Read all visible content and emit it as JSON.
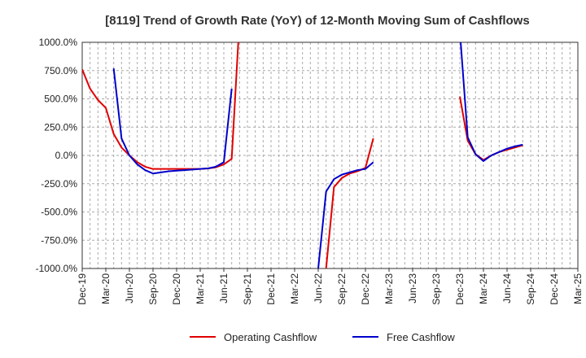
{
  "chart_data": {
    "type": "line",
    "title": "[8119]  Trend of Growth Rate (YoY) of 12-Month Moving Sum of Cashflows",
    "xlabel": "",
    "ylabel": "",
    "ylim": [
      -1000,
      1000
    ],
    "y_ticks": [
      1000,
      750,
      500,
      250,
      0,
      -250,
      -500,
      -750,
      -1000
    ],
    "y_tick_labels": [
      "1000.0%",
      "750.0%",
      "500.0%",
      "250.0%",
      "0.0%",
      "-250.0%",
      "-500.0%",
      "-750.0%",
      "-1000.0%"
    ],
    "x_tick_labels": [
      "Dec-19",
      "Mar-20",
      "Jun-20",
      "Sep-20",
      "Dec-20",
      "Mar-21",
      "Jun-21",
      "Sep-21",
      "Dec-21",
      "Mar-22",
      "Jun-22",
      "Sep-22",
      "Dec-22",
      "Mar-23",
      "Jun-23",
      "Sep-23",
      "Dec-23",
      "Mar-24",
      "Jun-24",
      "Sep-24",
      "Dec-24",
      "Mar-25"
    ],
    "x_months": [
      "Dec-19",
      "Jan-20",
      "Feb-20",
      "Mar-20",
      "Apr-20",
      "May-20",
      "Jun-20",
      "Jul-20",
      "Aug-20",
      "Sep-20",
      "Oct-20",
      "Nov-20",
      "Dec-20",
      "Jan-21",
      "Feb-21",
      "Mar-21",
      "Apr-21",
      "May-21",
      "Jun-21",
      "Jul-21",
      "Aug-21",
      "Sep-21",
      "Oct-21",
      "Nov-21",
      "Dec-21",
      "Jan-22",
      "Feb-22",
      "Mar-22",
      "Apr-22",
      "May-22",
      "Jun-22",
      "Jul-22",
      "Aug-22",
      "Sep-22",
      "Oct-22",
      "Nov-22",
      "Dec-22",
      "Jan-23",
      "Feb-23",
      "Mar-23",
      "Apr-23",
      "May-23",
      "Jun-23",
      "Jul-23",
      "Aug-23",
      "Sep-23",
      "Oct-23",
      "Nov-23",
      "Dec-23",
      "Jan-24",
      "Feb-24",
      "Mar-24",
      "Apr-24",
      "May-24",
      "Jun-24",
      "Jul-24",
      "Aug-24",
      "Sep-24",
      "Oct-24",
      "Nov-24",
      "Dec-24",
      "Jan-25",
      "Feb-25",
      "Mar-25"
    ],
    "grid": true,
    "legend_position": "bottom-center",
    "series": [
      {
        "name": "Operating Cashflow",
        "color": "#e00000",
        "values": [
          760,
          590,
          490,
          420,
          190,
          70,
          0,
          -60,
          -100,
          -120,
          -120,
          -120,
          -120,
          -120,
          -120,
          -120,
          -115,
          -105,
          -80,
          -30,
          1200,
          null,
          null,
          null,
          null,
          null,
          null,
          null,
          null,
          null,
          null,
          -1000,
          -280,
          -200,
          -160,
          -140,
          -110,
          150,
          null,
          null,
          null,
          null,
          null,
          null,
          null,
          null,
          null,
          null,
          520,
          130,
          10,
          -40,
          0,
          30,
          50,
          70,
          90,
          null,
          null,
          null,
          null,
          null,
          null,
          null
        ]
      },
      {
        "name": "Free Cashflow",
        "color": "#0000cc",
        "values": [
          null,
          null,
          null,
          null,
          770,
          150,
          0,
          -80,
          -130,
          -160,
          -150,
          -140,
          -135,
          -130,
          -125,
          -120,
          -115,
          -100,
          -60,
          590,
          null,
          null,
          null,
          null,
          null,
          null,
          null,
          null,
          null,
          null,
          -1000,
          -320,
          -210,
          -170,
          -150,
          -130,
          -120,
          -60,
          null,
          null,
          null,
          null,
          null,
          null,
          null,
          null,
          null,
          null,
          1100,
          160,
          10,
          -50,
          0,
          30,
          60,
          80,
          95,
          null,
          null,
          null,
          null,
          null,
          null,
          null
        ]
      }
    ]
  }
}
